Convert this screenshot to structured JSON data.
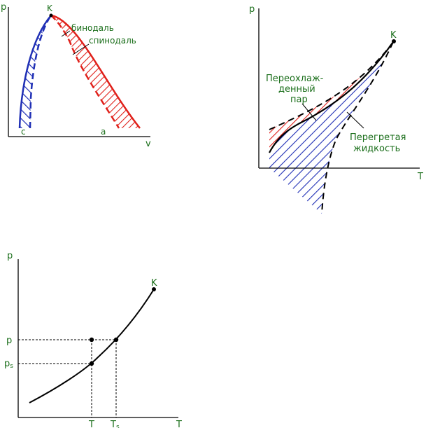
{
  "diagram1": {
    "axis_y": "p",
    "axis_x": "v",
    "point_k": "K",
    "point_c": "c",
    "point_a": "a",
    "label_binodal": "бинодаль",
    "label_spinodal": "спинодаль"
  },
  "diagram2": {
    "axis_y": "p",
    "axis_x": "T",
    "point_k": "K",
    "label_vapor_line1": "Переохлаж-",
    "label_vapor_line2": "денный",
    "label_vapor_line3": "пар",
    "label_liquid_line1": "Перегретая",
    "label_liquid_line2": "жидкость"
  },
  "diagram3": {
    "axis_y": "p",
    "axis_x": "T",
    "point_k": "K",
    "tick_p": "p",
    "tick_ps_main": "p",
    "tick_ps_sub": "s",
    "tick_t": "T",
    "tick_ts_main": "T",
    "tick_ts_sub": "s"
  },
  "colors": {
    "axis": "#000000",
    "curve": "#000000",
    "label": "#1a6e1a",
    "blue_hatch": "#1f2fb5",
    "red_hatch": "#e0201a"
  }
}
